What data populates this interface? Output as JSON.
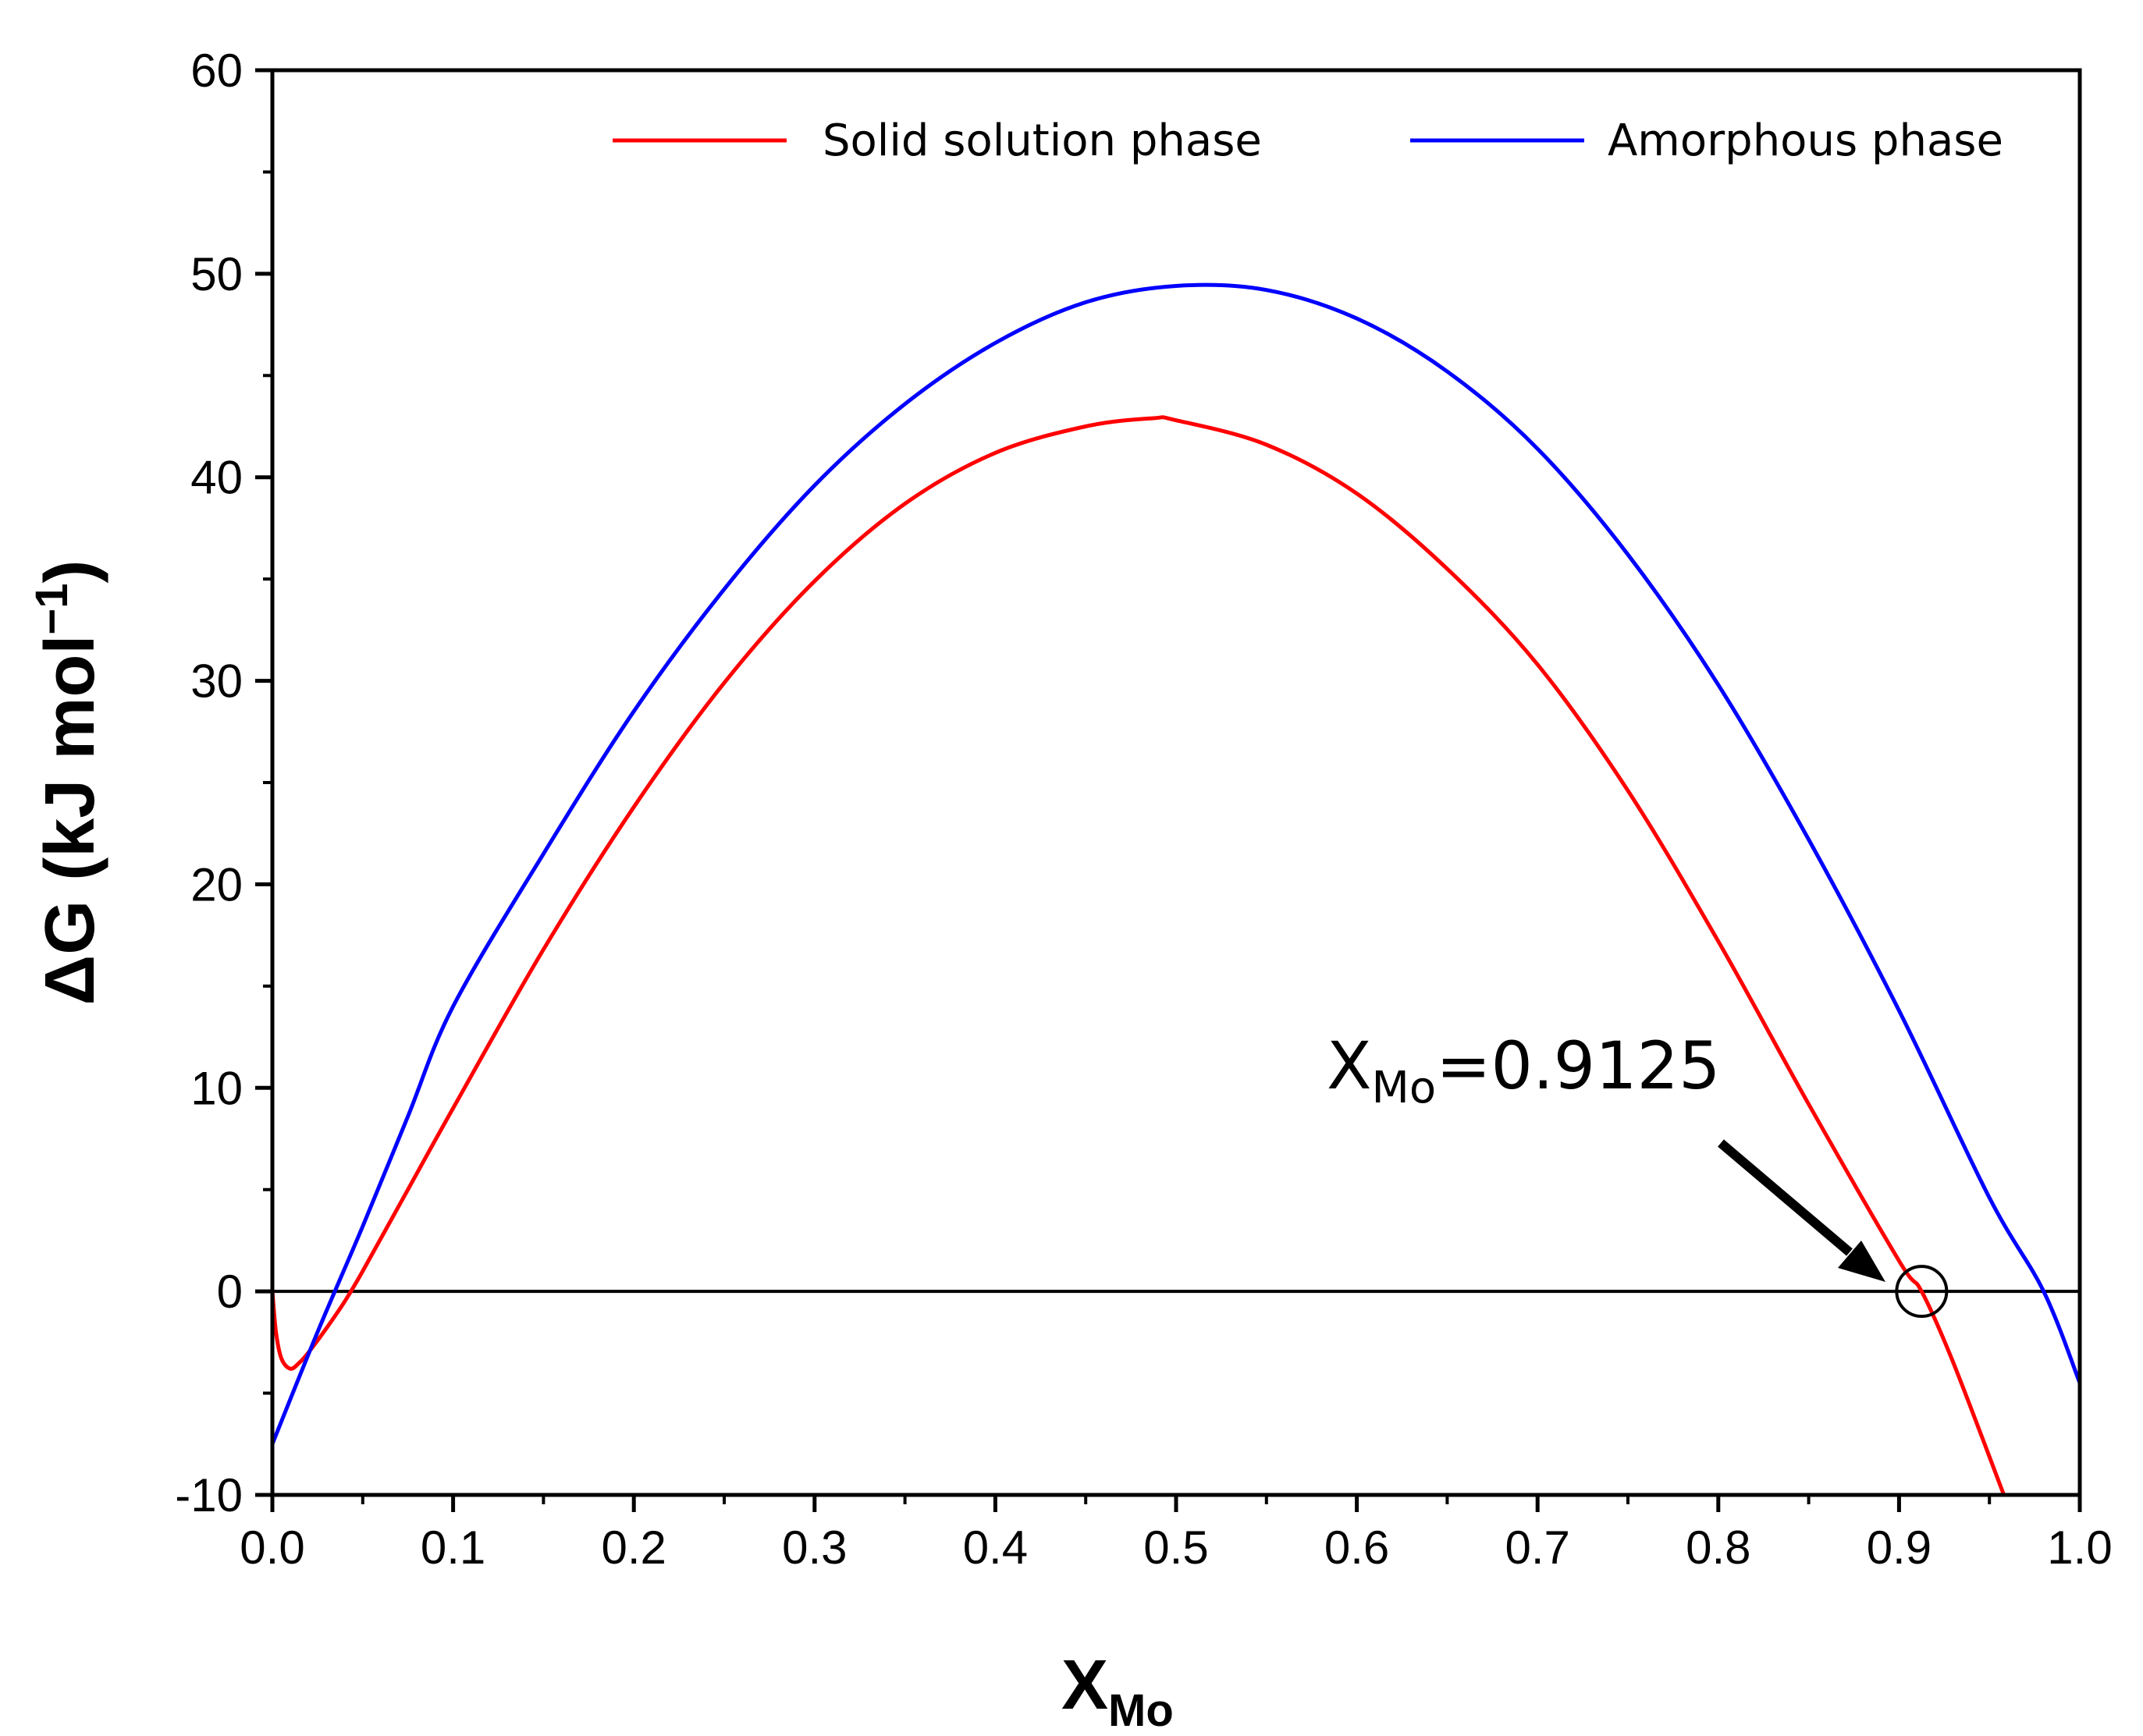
{
  "chart_data": {
    "type": "line",
    "title": "",
    "xlabel": {
      "main": "X",
      "sub": "Mo"
    },
    "ylabel": {
      "main": "ΔG  (kJ mol",
      "sup": "−1",
      "tail": ")"
    },
    "xlim": [
      0.0,
      1.0
    ],
    "ylim": [
      -10,
      60
    ],
    "x_ticks": [
      "0.0",
      "0.1",
      "0.2",
      "0.3",
      "0.4",
      "0.5",
      "0.6",
      "0.7",
      "0.8",
      "0.9",
      "1.0"
    ],
    "y_ticks": [
      "-10",
      "0",
      "10",
      "20",
      "30",
      "40",
      "50",
      "60"
    ],
    "legend_position": "top",
    "reference_line": {
      "y": 0
    },
    "series": [
      {
        "name": "Solid solution phase",
        "color": "#ff0000",
        "x": [
          0.0,
          0.002,
          0.005,
          0.01,
          0.015,
          0.02,
          0.03,
          0.04,
          0.05,
          0.075,
          0.1,
          0.15,
          0.2,
          0.25,
          0.3,
          0.35,
          0.4,
          0.45,
          0.487,
          0.5,
          0.55,
          0.6,
          0.65,
          0.7,
          0.75,
          0.8,
          0.85,
          0.9,
          0.9125,
          0.93,
          0.958
        ],
        "y": [
          0.0,
          -2.0,
          -3.3,
          -3.8,
          -3.5,
          -3.0,
          -1.8,
          -0.5,
          1.0,
          5.0,
          9.0,
          16.8,
          23.8,
          29.9,
          34.9,
          38.7,
          41.2,
          42.5,
          42.9,
          42.8,
          41.6,
          39.2,
          35.5,
          30.8,
          24.6,
          17.2,
          9.2,
          1.5,
          0.0,
          -3.5,
          -10.0
        ]
      },
      {
        "name": "Amorphous phase",
        "color": "#0000ff",
        "x": [
          0.0,
          0.025,
          0.05,
          0.075,
          0.1,
          0.15,
          0.2,
          0.25,
          0.3,
          0.35,
          0.4,
          0.45,
          0.5,
          0.55,
          0.6,
          0.65,
          0.7,
          0.75,
          0.8,
          0.85,
          0.9,
          0.95,
          0.98,
          1.0
        ],
        "y": [
          -7.5,
          -2.0,
          3.2,
          8.6,
          14.0,
          21.5,
          28.5,
          34.5,
          39.6,
          43.6,
          46.6,
          48.6,
          49.4,
          49.2,
          47.8,
          45.2,
          41.4,
          36.2,
          29.8,
          22.2,
          13.8,
          4.6,
          0.0,
          -4.5
        ]
      }
    ],
    "annotations": [
      {
        "text_main": "X",
        "text_sub": "Mo",
        "text_tail": "=0.9125",
        "point": {
          "x": 0.9125,
          "y": 0
        }
      }
    ]
  }
}
